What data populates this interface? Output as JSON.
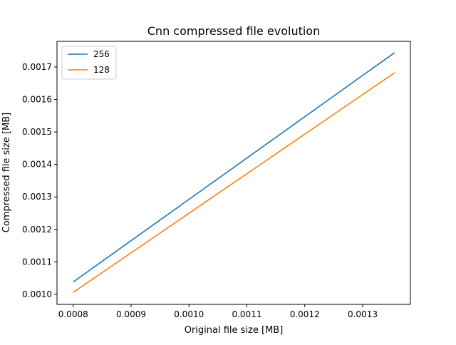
{
  "chart_data": {
    "type": "line",
    "title": "Cnn compressed file evolution",
    "xlabel": "Original file size [MB]",
    "ylabel": "Compressed file size [MB]",
    "xlim": [
      0.000772,
      0.0013825
    ],
    "ylim": [
      0.000969,
      0.001779
    ],
    "xticks": [
      0.0008,
      0.0009,
      0.001,
      0.0011,
      0.0012,
      0.0013
    ],
    "xtick_labels": [
      "0.0008",
      "0.0009",
      "0.0010",
      "0.0011",
      "0.0012",
      "0.0013"
    ],
    "yticks": [
      0.001,
      0.0011,
      0.0012,
      0.0013,
      0.0014,
      0.0015,
      0.0016,
      0.0017
    ],
    "ytick_labels": [
      "0.0010",
      "0.0011",
      "0.0012",
      "0.0013",
      "0.0014",
      "0.0015",
      "0.0016",
      "0.0017"
    ],
    "grid": false,
    "legend_position": "top-left",
    "series": [
      {
        "name": "256",
        "color": "#1f77b4",
        "x": [
          0.0008,
          0.001355
        ],
        "y": [
          0.001038,
          0.001744
        ]
      },
      {
        "name": "128",
        "color": "#ff7f0e",
        "x": [
          0.0008,
          0.001355
        ],
        "y": [
          0.001006,
          0.001682
        ]
      }
    ]
  }
}
